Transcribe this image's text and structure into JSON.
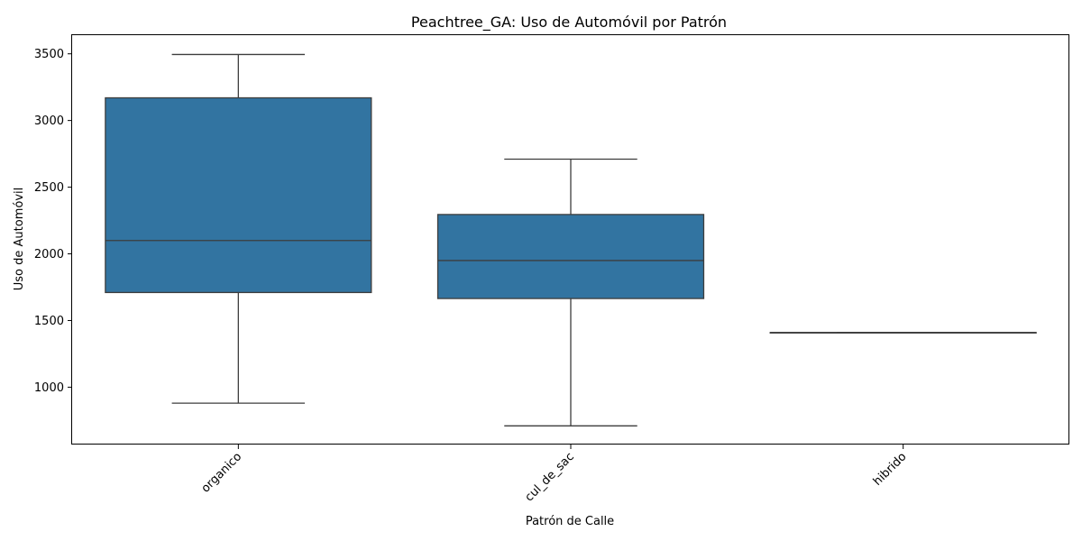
{
  "chart_data": {
    "type": "box",
    "title": "Peachtree_GA: Uso de Automóvil por Patrón",
    "xlabel": "Patrón de Calle",
    "ylabel": "Uso de Automóvil",
    "ylim": [
      570,
      3640
    ],
    "yticks": [
      1000,
      1500,
      2000,
      2500,
      3000,
      3500
    ],
    "grid": false,
    "categories": [
      "organico",
      "cul_de_sac",
      "hibrido"
    ],
    "boxes": [
      {
        "category": "organico",
        "whisker_low": 880,
        "q1": 1710,
        "median": 2100,
        "q3": 3170,
        "whisker_high": 3495
      },
      {
        "category": "cul_de_sac",
        "whisker_low": 710,
        "q1": 1665,
        "median": 1950,
        "q3": 2295,
        "whisker_high": 2710
      },
      {
        "category": "hibrido",
        "whisker_low": 1410,
        "q1": 1410,
        "median": 1410,
        "q3": 1410,
        "whisker_high": 1410
      }
    ],
    "colors": {
      "box_fill": "#3274a1",
      "line": "#3d3d3d",
      "axis": "#000000"
    }
  }
}
